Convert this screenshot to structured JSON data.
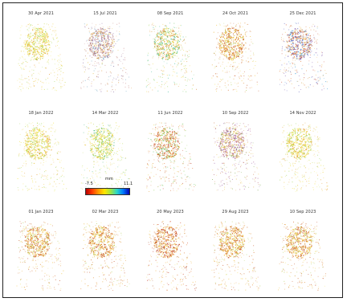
{
  "figure": {
    "panels": [
      {
        "date": "30 Apr 2021",
        "tone": "yellow"
      },
      {
        "date": "15 Jul 2021",
        "tone": "mixed-purple"
      },
      {
        "date": "08 Sep 2021",
        "tone": "green-orange"
      },
      {
        "date": "24 Oct 2021",
        "tone": "orange"
      },
      {
        "date": "25 Dec 2021",
        "tone": "red-blue"
      },
      {
        "date": "18 Jan 2022",
        "tone": "yellow"
      },
      {
        "date": "14 Mar 2022",
        "tone": "yellow-green"
      },
      {
        "date": "11 Jun 2022",
        "tone": "red-green"
      },
      {
        "date": "10 Sep 2022",
        "tone": "purple"
      },
      {
        "date": "14 Nov 2022",
        "tone": "yellow"
      },
      {
        "date": "01 Jan 2023",
        "tone": "orange"
      },
      {
        "date": "02 Mar 2023",
        "tone": "orange"
      },
      {
        "date": "20 May 2023",
        "tone": "red-orange"
      },
      {
        "date": "29 Aug 2023",
        "tone": "orange"
      },
      {
        "date": "10 Sep 2023",
        "tone": "orange"
      }
    ],
    "colorbar": {
      "min_label": "-7.5",
      "max_label": "11.1",
      "unit_label": "mm",
      "colors": [
        "#b80000",
        "#ff3a00",
        "#ff9a00",
        "#ffe600",
        "#9ee641",
        "#29d6c8",
        "#0078ff",
        "#0000b4"
      ]
    }
  }
}
